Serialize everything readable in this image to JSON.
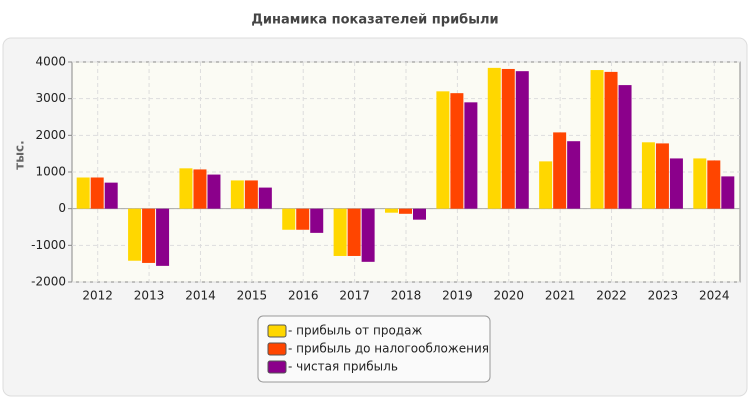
{
  "chart_data": {
    "type": "bar",
    "title": "Динамика показателей прибыли",
    "ylabel": "тыс.",
    "categories": [
      "2012",
      "2013",
      "2014",
      "2015",
      "2016",
      "2017",
      "2018",
      "2019",
      "2020",
      "2021",
      "2022",
      "2023",
      "2024"
    ],
    "series": [
      {
        "name": "- прибыль от продаж",
        "color": "#ffd700",
        "values": [
          850,
          -1420,
          1100,
          770,
          -575,
          -1290,
          -110,
          3200,
          3840,
          1290,
          3780,
          1810,
          1370
        ]
      },
      {
        "name": "- прибыль до налогообложения",
        "color": "#ff4500",
        "values": [
          850,
          -1480,
          1070,
          770,
          -575,
          -1290,
          -140,
          3150,
          3810,
          2080,
          3730,
          1780,
          1315
        ]
      },
      {
        "name": "- чистая прибыль",
        "color": "#8b008b",
        "values": [
          710,
          -1560,
          930,
          575,
          -660,
          -1450,
          -300,
          2900,
          3750,
          1840,
          3370,
          1370,
          880
        ]
      }
    ],
    "ylim": [
      -2000,
      4000
    ],
    "yticks": [
      -2000,
      -1000,
      0,
      1000,
      2000,
      3000,
      4000
    ],
    "grid": true,
    "legend": "bottom"
  }
}
